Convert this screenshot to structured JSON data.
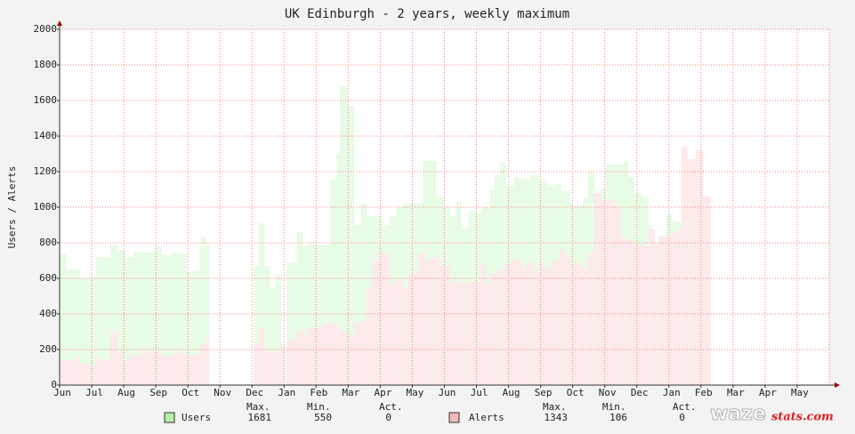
{
  "chart_data": {
    "type": "step-area",
    "title": "UK Edinburgh - 2 years, weekly maximum",
    "y_label": "Users / Alerts",
    "xlim": [
      0,
      24
    ],
    "xticks": [
      {
        "value": 0,
        "label": "Jun"
      },
      {
        "value": 1,
        "label": "Jul"
      },
      {
        "value": 2,
        "label": "Aug"
      },
      {
        "value": 3,
        "label": "Sep"
      },
      {
        "value": 4,
        "label": "Oct"
      },
      {
        "value": 5,
        "label": "Nov"
      },
      {
        "value": 6,
        "label": "Dec"
      },
      {
        "value": 7,
        "label": "Jan"
      },
      {
        "value": 8,
        "label": "Feb"
      },
      {
        "value": 9,
        "label": "Mar"
      },
      {
        "value": 10,
        "label": "Apr"
      },
      {
        "value": 11,
        "label": "May"
      },
      {
        "value": 12,
        "label": "Jun"
      },
      {
        "value": 13,
        "label": "Jul"
      },
      {
        "value": 14,
        "label": "Aug"
      },
      {
        "value": 15,
        "label": "Sep"
      },
      {
        "value": 16,
        "label": "Oct"
      },
      {
        "value": 17,
        "label": "Nov"
      },
      {
        "value": 18,
        "label": "Dec"
      },
      {
        "value": 19,
        "label": "Jan"
      },
      {
        "value": 20,
        "label": "Feb"
      },
      {
        "value": 21,
        "label": "Mar"
      },
      {
        "value": 22,
        "label": "Apr"
      },
      {
        "value": 23,
        "label": "May"
      }
    ],
    "ylim": [
      0,
      2000
    ],
    "yticks": [
      0,
      200,
      400,
      600,
      800,
      1000,
      1200,
      1400,
      1600,
      1800,
      2000
    ],
    "grid": true,
    "stat_labels": [
      "Max.",
      "Min.",
      "Act."
    ],
    "series": [
      {
        "name": "Users",
        "color": "#b4f0a8",
        "fill": "#e8fbe6",
        "line_color": "#000000",
        "max": 1681,
        "min": 550,
        "act": 0,
        "x": [
          0,
          0.22,
          0.64,
          1.06,
          1.14,
          1.58,
          1.83,
          2.06,
          2.31,
          3.0,
          3.19,
          3.47,
          3.97,
          4.39,
          4.58,
          4.67,
          6.06,
          6.22,
          6.39,
          6.56,
          6.75,
          6.92,
          7.08,
          7.39,
          7.58,
          7.72,
          8.44,
          8.64,
          8.75,
          8.97,
          9.19,
          9.39,
          9.58,
          10.08,
          10.28,
          10.5,
          10.69,
          11.33,
          11.75,
          11.97,
          12.17,
          12.36,
          12.53,
          12.75,
          12.94,
          13.14,
          13.42,
          13.56,
          13.75,
          13.92,
          14.17,
          14.33,
          14.67,
          14.94,
          15.22,
          15.42,
          15.64,
          15.92,
          16.33,
          16.47,
          16.69,
          16.81,
          17.03,
          17.58,
          17.72,
          17.92,
          18.14,
          18.36,
          18.5,
          18.69,
          18.92,
          19.11,
          19.39,
          19.58,
          19.75,
          19.94,
          20.22,
          20.31
        ],
        "values": [
          740,
          650,
          600,
          610,
          720,
          790,
          760,
          720,
          750,
          780,
          730,
          740,
          640,
          830,
          790,
          null,
          670,
          910,
          670,
          550,
          620,
          null,
          690,
          860,
          780,
          790,
          1150,
          1300,
          1681,
          1570,
          900,
          1020,
          950,
          900,
          950,
          1000,
          1020,
          1260,
          1060,
          1000,
          950,
          1030,
          880,
          980,
          970,
          1000,
          1100,
          1180,
          1250,
          1120,
          1170,
          1160,
          1180,
          1150,
          1120,
          1130,
          1090,
          1010,
          1050,
          1200,
          1020,
          1100,
          1240,
          1260,
          1170,
          1080,
          1060,
          900,
          800,
          840,
          960,
          920,
          1150,
          1170,
          1060,
          960,
          1060,
          null
        ]
      },
      {
        "name": "Alerts",
        "color": "#f4b8b8",
        "fill": "#fdeaea",
        "line_color": "#000000",
        "max": 1343,
        "min": 106,
        "act": 0,
        "x": [
          0,
          0.5,
          0.64,
          0.92,
          1.14,
          1.28,
          1.58,
          1.81,
          1.97,
          2.17,
          2.31,
          2.53,
          2.72,
          2.92,
          3.14,
          3.28,
          3.56,
          3.83,
          4.39,
          4.58,
          4.67,
          6.06,
          6.22,
          6.39,
          6.89,
          7.03,
          7.08,
          7.39,
          7.58,
          7.72,
          8.0,
          8.28,
          8.47,
          8.69,
          8.83,
          8.97,
          9.19,
          9.39,
          9.58,
          9.75,
          9.94,
          10.31,
          10.5,
          10.69,
          10.86,
          11.06,
          11.19,
          11.42,
          11.61,
          11.89,
          12.17,
          13.14,
          13.28,
          13.42,
          13.64,
          13.89,
          14.11,
          14.25,
          14.44,
          14.58,
          14.81,
          14.94,
          15.14,
          15.36,
          15.58,
          15.78,
          15.92,
          16.19,
          16.33,
          16.47,
          16.67,
          16.89,
          17.31,
          17.5,
          17.58,
          17.86,
          18.19,
          18.36,
          18.56,
          18.69,
          18.89,
          19.11,
          19.25,
          19.39,
          19.58,
          19.83,
          20.08,
          20.31
        ],
        "values": [
          140,
          160,
          120,
          106,
          150,
          140,
          300,
          190,
          140,
          170,
          160,
          200,
          180,
          190,
          170,
          160,
          190,
          170,
          230,
          270,
          null,
          230,
          320,
          190,
          220,
          null,
          250,
          310,
          280,
          320,
          330,
          350,
          340,
          310,
          300,
          280,
          350,
          360,
          550,
          700,
          740,
          570,
          590,
          550,
          620,
          640,
          740,
          700,
          720,
          670,
          580,
          680,
          570,
          630,
          650,
          680,
          710,
          690,
          650,
          690,
          640,
          690,
          650,
          700,
          760,
          720,
          680,
          690,
          650,
          740,
          1080,
          1040,
          1000,
          830,
          820,
          790,
          780,
          880,
          790,
          830,
          840,
          860,
          880,
          1343,
          1270,
          1320,
          1060,
          null
        ]
      }
    ],
    "credit": [
      "waze",
      "stats.com"
    ]
  }
}
